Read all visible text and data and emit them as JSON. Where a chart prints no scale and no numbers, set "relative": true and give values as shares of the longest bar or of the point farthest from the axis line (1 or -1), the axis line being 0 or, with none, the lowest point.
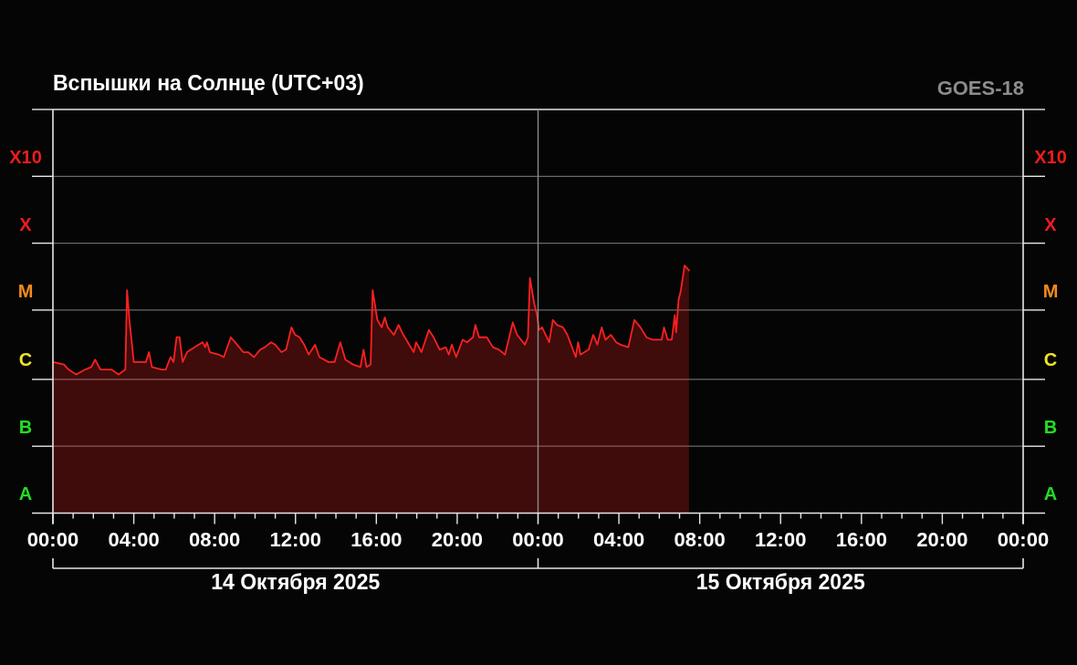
{
  "chart_data": {
    "type": "area",
    "title": "Вспышки на Солнце (UTC+03)",
    "subtitle": "GOES-18",
    "color": "#ff2020",
    "relative": true,
    "x": [
      "2025-10-14T00:00",
      "2025-10-14T00:33",
      "2025-10-14T00:46",
      "2025-10-14T01:09",
      "2025-10-14T01:36",
      "2025-10-14T01:54",
      "2025-10-14T02:05",
      "2025-10-14T02:21",
      "2025-10-14T02:39",
      "2025-10-14T02:53",
      "2025-10-14T03:15",
      "2025-10-14T03:35",
      "2025-10-14T03:40",
      "2025-10-14T03:47",
      "2025-10-14T04:00",
      "2025-10-14T04:18",
      "2025-10-14T04:36",
      "2025-10-14T04:45",
      "2025-10-14T04:54",
      "2025-10-14T05:22",
      "2025-10-14T05:35",
      "2025-10-14T05:49",
      "2025-10-14T05:58",
      "2025-10-14T06:07",
      "2025-10-14T06:16",
      "2025-10-14T06:25",
      "2025-10-14T06:38",
      "2025-10-14T07:01",
      "2025-10-14T07:24",
      "2025-10-14T07:32",
      "2025-10-14T07:37",
      "2025-10-14T07:46",
      "2025-10-14T08:13",
      "2025-10-14T08:27",
      "2025-10-14T08:48",
      "2025-10-14T09:07",
      "2025-10-14T09:25",
      "2025-10-14T09:39",
      "2025-10-14T09:57",
      "2025-10-14T10:15",
      "2025-10-14T10:29",
      "2025-10-14T10:47",
      "2025-10-14T11:00",
      "2025-10-14T11:18",
      "2025-10-14T11:32",
      "2025-10-14T11:48",
      "2025-10-14T11:59",
      "2025-10-14T12:12",
      "2025-10-14T12:26",
      "2025-10-14T12:39",
      "2025-10-14T12:58",
      "2025-10-14T13:11",
      "2025-10-14T13:38",
      "2025-10-14T13:56",
      "2025-10-14T14:13",
      "2025-10-14T14:28",
      "2025-10-14T14:51",
      "2025-10-14T15:13",
      "2025-10-14T15:22",
      "2025-10-14T15:31",
      "2025-10-14T15:43",
      "2025-10-14T15:49",
      "2025-10-14T16:03",
      "2025-10-14T16:16",
      "2025-10-14T16:25",
      "2025-10-14T16:34",
      "2025-10-14T16:52",
      "2025-10-14T17:06",
      "2025-10-14T17:20",
      "2025-10-14T17:51",
      "2025-10-14T17:58",
      "2025-10-14T18:14",
      "2025-10-14T18:36",
      "2025-10-14T18:50",
      "2025-10-14T19:08",
      "2025-10-14T19:26",
      "2025-10-14T19:35",
      "2025-10-14T19:44",
      "2025-10-14T19:57",
      "2025-10-14T20:16",
      "2025-10-14T20:29",
      "2025-10-14T20:47",
      "2025-10-14T20:54",
      "2025-10-14T21:05",
      "2025-10-14T21:28",
      "2025-10-14T21:46",
      "2025-10-14T22:04",
      "2025-10-14T22:22",
      "2025-10-14T22:45",
      "2025-10-14T22:58",
      "2025-10-14T23:21",
      "2025-10-14T23:30",
      "2025-10-14T23:36",
      "2025-10-14T23:48",
      "2025-10-14T23:57",
      "2025-10-15T00:03",
      "2025-10-15T00:12",
      "2025-10-15T00:33",
      "2025-10-15T00:44",
      "2025-10-15T00:56",
      "2025-10-15T01:14",
      "2025-10-15T01:27",
      "2025-10-15T01:41",
      "2025-10-15T01:52",
      "2025-10-15T01:59",
      "2025-10-15T02:06",
      "2025-10-15T02:30",
      "2025-10-15T02:44",
      "2025-10-15T02:56",
      "2025-10-15T03:09",
      "2025-10-15T03:20",
      "2025-10-15T03:36",
      "2025-10-15T03:52",
      "2025-10-15T04:05",
      "2025-10-15T04:28",
      "2025-10-15T04:46",
      "2025-10-15T05:04",
      "2025-10-15T05:22",
      "2025-10-15T05:40",
      "2025-10-15T06:07",
      "2025-10-15T06:14",
      "2025-10-15T06:25",
      "2025-10-15T06:37",
      "2025-10-15T06:46",
      "2025-10-15T06:50",
      "2025-10-15T06:57",
      "2025-10-15T07:04",
      "2025-10-15T07:15",
      "2025-10-15T07:28"
    ],
    "values": [
      0.61,
      0.6,
      0.58,
      0.56,
      0.58,
      0.59,
      0.62,
      0.58,
      0.58,
      0.58,
      0.56,
      0.58,
      0.9,
      0.78,
      0.61,
      0.61,
      0.61,
      0.65,
      0.59,
      0.58,
      0.58,
      0.63,
      0.61,
      0.71,
      0.71,
      0.61,
      0.65,
      0.67,
      0.69,
      0.67,
      0.69,
      0.65,
      0.64,
      0.63,
      0.71,
      0.68,
      0.65,
      0.65,
      0.63,
      0.66,
      0.67,
      0.69,
      0.68,
      0.65,
      0.66,
      0.75,
      0.72,
      0.71,
      0.68,
      0.64,
      0.68,
      0.63,
      0.61,
      0.61,
      0.69,
      0.62,
      0.6,
      0.59,
      0.66,
      0.59,
      0.6,
      0.9,
      0.78,
      0.75,
      0.79,
      0.75,
      0.72,
      0.76,
      0.72,
      0.65,
      0.69,
      0.65,
      0.74,
      0.71,
      0.66,
      0.67,
      0.64,
      0.68,
      0.63,
      0.7,
      0.69,
      0.71,
      0.76,
      0.71,
      0.71,
      0.67,
      0.66,
      0.64,
      0.77,
      0.72,
      0.68,
      0.71,
      0.95,
      0.85,
      0.8,
      0.74,
      0.75,
      0.69,
      0.78,
      0.76,
      0.75,
      0.72,
      0.67,
      0.63,
      0.69,
      0.64,
      0.66,
      0.72,
      0.68,
      0.75,
      0.7,
      0.72,
      0.69,
      0.68,
      0.67,
      0.78,
      0.75,
      0.71,
      0.7,
      0.7,
      0.75,
      0.7,
      0.7,
      0.8,
      0.73,
      0.86,
      0.9,
      1,
      0.98
    ],
    "annotations": [
      "X10",
      "X",
      "M",
      "C",
      "B",
      "A"
    ],
    "ref_lines": [
      {
        "axis": "y",
        "value": 0.27,
        "color": "#6a6a6a"
      },
      {
        "axis": "y",
        "value": 0.54,
        "color": "#6a6a6a"
      },
      {
        "axis": "y",
        "value": 0.82,
        "color": "#6a6a6a"
      },
      {
        "axis": "y",
        "value": 1.09,
        "color": "#6a6a6a"
      },
      {
        "axis": "y",
        "value": 1.36,
        "color": "#6a6a6a"
      },
      {
        "axis": "y",
        "value": 1.63,
        "color": "#e6e6e6"
      },
      {
        "axis": "x",
        "value": "2025-10-15T00:00",
        "color": "#8c8c8c"
      }
    ],
    "xlim": [
      "2025-10-14T00:00",
      "2025-10-16T00:00"
    ],
    "xticks": [
      {
        "value": "2025-10-14T00:00",
        "label": "00:00"
      },
      {
        "value": "2025-10-14T01:00",
        "label": null
      },
      {
        "value": "2025-10-14T02:00",
        "label": null
      },
      {
        "value": "2025-10-14T03:00",
        "label": null
      },
      {
        "value": "2025-10-14T04:00",
        "label": "04:00"
      },
      {
        "value": "2025-10-14T05:00",
        "label": null
      },
      {
        "value": "2025-10-14T06:00",
        "label": null
      },
      {
        "value": "2025-10-14T07:00",
        "label": null
      },
      {
        "value": "2025-10-14T08:00",
        "label": "08:00"
      },
      {
        "value": "2025-10-14T09:00",
        "label": null
      },
      {
        "value": "2025-10-14T10:00",
        "label": null
      },
      {
        "value": "2025-10-14T11:00",
        "label": null
      },
      {
        "value": "2025-10-14T12:00",
        "label": "12:00"
      },
      {
        "value": "2025-10-14T13:00",
        "label": null
      },
      {
        "value": "2025-10-14T14:00",
        "label": null
      },
      {
        "value": "2025-10-14T15:00",
        "label": null
      },
      {
        "value": "2025-10-14T16:00",
        "label": "16:00"
      },
      {
        "value": "2025-10-14T17:00",
        "label": null
      },
      {
        "value": "2025-10-14T18:00",
        "label": null
      },
      {
        "value": "2025-10-14T19:00",
        "label": null
      },
      {
        "value": "2025-10-14T20:00",
        "label": "20:00"
      },
      {
        "value": "2025-10-14T21:00",
        "label": null
      },
      {
        "value": "2025-10-14T22:00",
        "label": null
      },
      {
        "value": "2025-10-14T23:00",
        "label": null
      },
      {
        "value": "2025-10-15T00:00",
        "label": "00:00"
      },
      {
        "value": "2025-10-15T01:00",
        "label": null
      },
      {
        "value": "2025-10-15T02:00",
        "label": null
      },
      {
        "value": "2025-10-15T03:00",
        "label": null
      },
      {
        "value": "2025-10-15T04:00",
        "label": "04:00"
      },
      {
        "value": "2025-10-15T05:00",
        "label": null
      },
      {
        "value": "2025-10-15T06:00",
        "label": null
      },
      {
        "value": "2025-10-15T07:00",
        "label": null
      },
      {
        "value": "2025-10-15T08:00",
        "label": "08:00"
      },
      {
        "value": "2025-10-15T09:00",
        "label": null
      },
      {
        "value": "2025-10-15T10:00",
        "label": null
      },
      {
        "value": "2025-10-15T11:00",
        "label": null
      },
      {
        "value": "2025-10-15T12:00",
        "label": "12:00"
      },
      {
        "value": "2025-10-15T13:00",
        "label": null
      },
      {
        "value": "2025-10-15T14:00",
        "label": null
      },
      {
        "value": "2025-10-15T15:00",
        "label": null
      },
      {
        "value": "2025-10-15T16:00",
        "label": "16:00"
      },
      {
        "value": "2025-10-15T17:00",
        "label": null
      },
      {
        "value": "2025-10-15T18:00",
        "label": null
      },
      {
        "value": "2025-10-15T19:00",
        "label": null
      },
      {
        "value": "2025-10-15T20:00",
        "label": "20:00"
      },
      {
        "value": "2025-10-15T21:00",
        "label": null
      },
      {
        "value": "2025-10-15T22:00",
        "label": null
      },
      {
        "value": "2025-10-15T23:00",
        "label": null
      },
      {
        "value": "2025-10-16T00:00",
        "label": "00:00"
      }
    ],
    "x2lim": [
      "2025-10-14T00:00",
      "2025-10-16T00:00"
    ],
    "x2ticks": [
      {
        "value": "2025-10-14T00:00",
        "label": null
      },
      {
        "value": "2025-10-14T12:00",
        "label": "14 Октября 2025"
      },
      {
        "value": "2025-10-15T00:00",
        "label": null
      },
      {
        "value": "2025-10-15T12:00",
        "label": "15 Октября 2025"
      },
      {
        "value": "2025-10-16T00:00",
        "label": null
      }
    ]
  }
}
